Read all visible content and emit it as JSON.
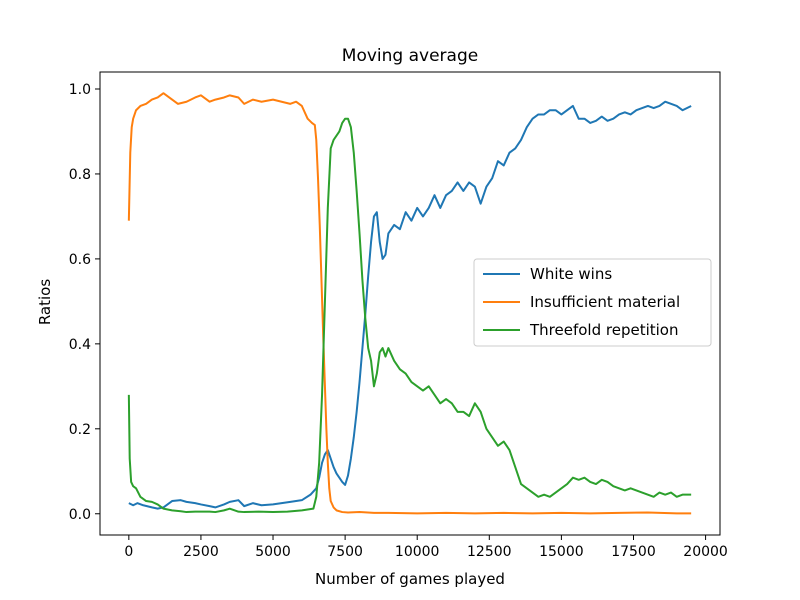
{
  "chart_data": {
    "type": "line",
    "title": "Moving average",
    "xlabel": "Number of games played",
    "ylabel": "Ratios",
    "xlim": [
      -1000,
      20500
    ],
    "ylim": [
      -0.05,
      1.04
    ],
    "xticks": [
      0,
      2500,
      5000,
      7500,
      10000,
      12500,
      15000,
      17500,
      20000
    ],
    "xtick_labels": [
      "0",
      "2500",
      "5000",
      "7500",
      "10000",
      "12500",
      "15000",
      "17500",
      "20000"
    ],
    "yticks": [
      0.0,
      0.2,
      0.4,
      0.6,
      0.8,
      1.0
    ],
    "ytick_labels": [
      "0.0",
      "0.2",
      "0.4",
      "0.6",
      "0.8",
      "1.0"
    ],
    "grid": false,
    "legend_position": "center-right",
    "series": [
      {
        "name": "White wins",
        "color": "#1f77b4",
        "x": [
          0,
          150,
          300,
          500,
          800,
          1000,
          1200,
          1500,
          1800,
          2000,
          2300,
          2500,
          2800,
          3000,
          3300,
          3500,
          3800,
          4000,
          4300,
          4600,
          5000,
          5300,
          5600,
          6000,
          6300,
          6500,
          6600,
          6700,
          6800,
          6900,
          7000,
          7100,
          7200,
          7300,
          7400,
          7500,
          7600,
          7700,
          7800,
          7900,
          8000,
          8100,
          8200,
          8300,
          8400,
          8500,
          8600,
          8700,
          8800,
          8900,
          9000,
          9200,
          9400,
          9600,
          9800,
          10000,
          10200,
          10400,
          10600,
          10800,
          11000,
          11200,
          11400,
          11600,
          11800,
          12000,
          12200,
          12400,
          12600,
          12800,
          13000,
          13200,
          13400,
          13600,
          13800,
          14000,
          14200,
          14400,
          14600,
          14800,
          15000,
          15200,
          15400,
          15600,
          15800,
          16000,
          16200,
          16400,
          16600,
          16800,
          17000,
          17200,
          17400,
          17600,
          17800,
          18000,
          18200,
          18400,
          18600,
          18800,
          19000,
          19200,
          19500
        ],
        "y": [
          0.025,
          0.02,
          0.025,
          0.02,
          0.015,
          0.012,
          0.015,
          0.03,
          0.032,
          0.028,
          0.025,
          0.022,
          0.018,
          0.015,
          0.022,
          0.028,
          0.032,
          0.018,
          0.025,
          0.02,
          0.022,
          0.025,
          0.028,
          0.032,
          0.045,
          0.06,
          0.085,
          0.12,
          0.14,
          0.15,
          0.13,
          0.11,
          0.095,
          0.085,
          0.075,
          0.068,
          0.09,
          0.13,
          0.18,
          0.24,
          0.31,
          0.39,
          0.47,
          0.56,
          0.64,
          0.7,
          0.71,
          0.64,
          0.6,
          0.61,
          0.66,
          0.68,
          0.67,
          0.71,
          0.69,
          0.72,
          0.7,
          0.72,
          0.75,
          0.72,
          0.75,
          0.76,
          0.78,
          0.76,
          0.78,
          0.77,
          0.73,
          0.77,
          0.79,
          0.83,
          0.82,
          0.85,
          0.86,
          0.88,
          0.91,
          0.93,
          0.94,
          0.94,
          0.95,
          0.95,
          0.94,
          0.95,
          0.96,
          0.93,
          0.93,
          0.92,
          0.925,
          0.935,
          0.925,
          0.93,
          0.94,
          0.945,
          0.94,
          0.95,
          0.955,
          0.96,
          0.955,
          0.96,
          0.97,
          0.965,
          0.96,
          0.95,
          0.96
        ]
      },
      {
        "name": "Insufficient material",
        "color": "#ff7f0e",
        "x": [
          0,
          50,
          100,
          150,
          250,
          400,
          600,
          800,
          1000,
          1200,
          1400,
          1700,
          2000,
          2300,
          2500,
          2800,
          3000,
          3300,
          3500,
          3800,
          4000,
          4300,
          4600,
          5000,
          5300,
          5600,
          5800,
          6000,
          6200,
          6350,
          6450,
          6500,
          6560,
          6620,
          6680,
          6740,
          6800,
          6850,
          6900,
          6950,
          7000,
          7100,
          7200,
          7400,
          7600,
          8000,
          8500,
          9000,
          10000,
          11000,
          12000,
          13000,
          14000,
          15000,
          16000,
          17000,
          18000,
          19000,
          19500
        ],
        "y": [
          0.69,
          0.85,
          0.91,
          0.93,
          0.95,
          0.96,
          0.965,
          0.975,
          0.98,
          0.99,
          0.98,
          0.965,
          0.97,
          0.98,
          0.985,
          0.97,
          0.975,
          0.98,
          0.985,
          0.98,
          0.965,
          0.975,
          0.97,
          0.975,
          0.97,
          0.965,
          0.97,
          0.96,
          0.93,
          0.92,
          0.915,
          0.88,
          0.79,
          0.68,
          0.55,
          0.42,
          0.3,
          0.2,
          0.12,
          0.06,
          0.03,
          0.015,
          0.008,
          0.004,
          0.003,
          0.004,
          0.002,
          0.002,
          0.001,
          0.002,
          0.001,
          0.002,
          0.001,
          0.002,
          0.001,
          0.002,
          0.003,
          0.001,
          0.001
        ]
      },
      {
        "name": "Threefold repetition",
        "color": "#2ca02c",
        "x": [
          0,
          30,
          80,
          150,
          250,
          400,
          600,
          800,
          1000,
          1200,
          1500,
          1800,
          2000,
          2300,
          2500,
          2800,
          3000,
          3300,
          3500,
          3800,
          4000,
          4500,
          5000,
          5500,
          6000,
          6200,
          6400,
          6500,
          6600,
          6700,
          6800,
          6900,
          7000,
          7100,
          7200,
          7300,
          7400,
          7500,
          7600,
          7700,
          7800,
          7900,
          8000,
          8100,
          8200,
          8300,
          8400,
          8500,
          8600,
          8700,
          8800,
          8900,
          9000,
          9200,
          9400,
          9600,
          9800,
          10000,
          10200,
          10400,
          10600,
          10800,
          11000,
          11200,
          11400,
          11600,
          11800,
          12000,
          12200,
          12400,
          12600,
          12800,
          13000,
          13200,
          13400,
          13600,
          13800,
          14000,
          14200,
          14400,
          14600,
          14800,
          15000,
          15200,
          15400,
          15600,
          15800,
          16000,
          16200,
          16400,
          16600,
          16800,
          17000,
          17200,
          17400,
          17600,
          17800,
          18000,
          18200,
          18400,
          18600,
          18800,
          19000,
          19200,
          19500
        ],
        "y": [
          0.28,
          0.13,
          0.075,
          0.065,
          0.06,
          0.04,
          0.03,
          0.028,
          0.022,
          0.012,
          0.008,
          0.006,
          0.004,
          0.005,
          0.005,
          0.005,
          0.004,
          0.008,
          0.012,
          0.005,
          0.004,
          0.005,
          0.004,
          0.005,
          0.008,
          0.01,
          0.012,
          0.04,
          0.12,
          0.28,
          0.5,
          0.72,
          0.86,
          0.88,
          0.89,
          0.9,
          0.92,
          0.93,
          0.93,
          0.91,
          0.85,
          0.76,
          0.66,
          0.55,
          0.46,
          0.39,
          0.36,
          0.3,
          0.33,
          0.38,
          0.39,
          0.37,
          0.39,
          0.36,
          0.34,
          0.33,
          0.31,
          0.3,
          0.29,
          0.3,
          0.28,
          0.26,
          0.27,
          0.26,
          0.24,
          0.24,
          0.23,
          0.26,
          0.24,
          0.2,
          0.18,
          0.16,
          0.17,
          0.15,
          0.11,
          0.07,
          0.06,
          0.05,
          0.04,
          0.045,
          0.04,
          0.05,
          0.06,
          0.07,
          0.085,
          0.08,
          0.085,
          0.075,
          0.07,
          0.08,
          0.075,
          0.065,
          0.06,
          0.055,
          0.06,
          0.055,
          0.05,
          0.045,
          0.04,
          0.05,
          0.045,
          0.05,
          0.04,
          0.045,
          0.045
        ]
      }
    ]
  }
}
